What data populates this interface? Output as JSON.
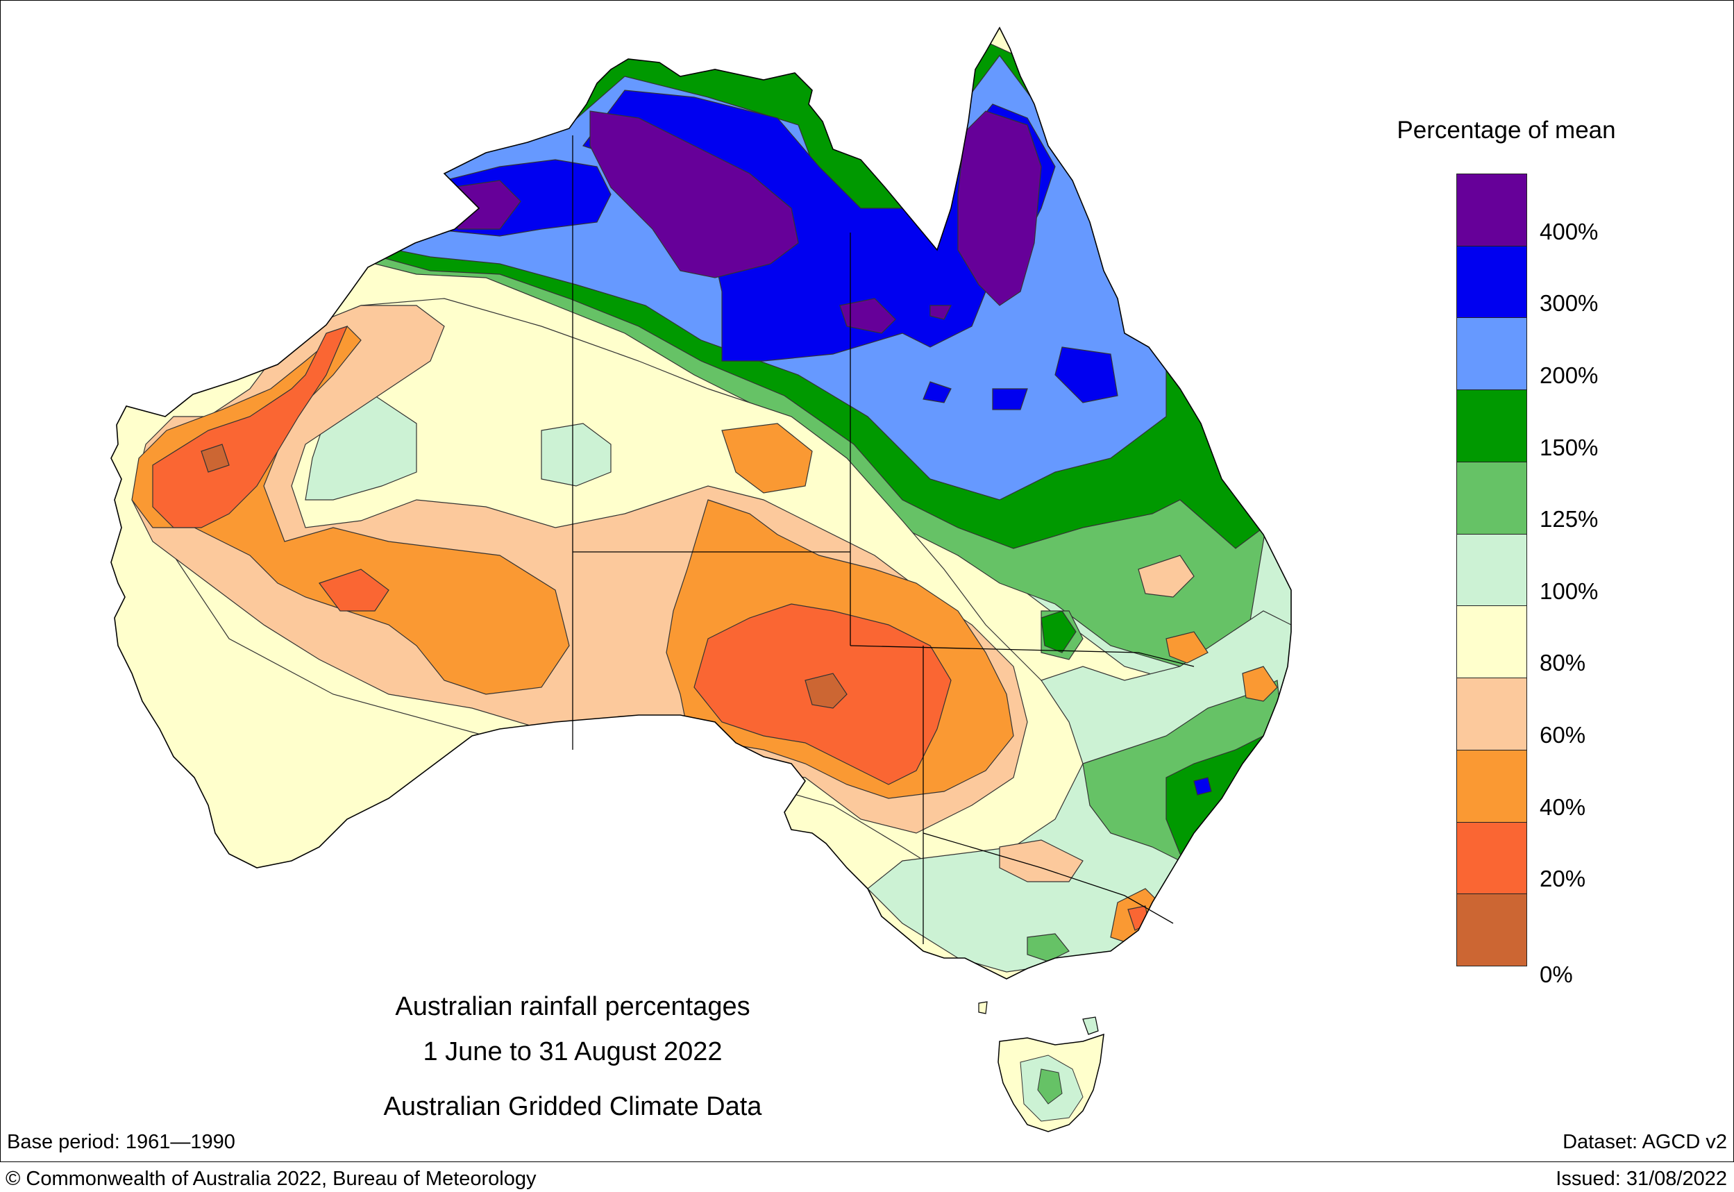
{
  "titles": {
    "line1": "Australian rainfall percentages",
    "line2": "1 June to 31 August 2022",
    "line3": "Australian Gridded Climate Data"
  },
  "legend": {
    "title": "Percentage of mean",
    "classes": [
      {
        "label": "400%",
        "color": "#660099"
      },
      {
        "label": "300%",
        "color": "#0000f0"
      },
      {
        "label": "200%",
        "color": "#6699ff"
      },
      {
        "label": "150%",
        "color": "#009900"
      },
      {
        "label": "125%",
        "color": "#66c266"
      },
      {
        "label": "100%",
        "color": "#ccf2d4"
      },
      {
        "label": "80%",
        "color": "#ffffcc"
      },
      {
        "label": "60%",
        "color": "#fcc99c"
      },
      {
        "label": "40%",
        "color": "#fa9933"
      },
      {
        "label": "20%",
        "color": "#fa6633"
      },
      {
        "label": "0%",
        "color": "#cc6633"
      }
    ]
  },
  "footer": {
    "base_period": "Base period: 1961—1990",
    "dataset": "Dataset: AGCD v2",
    "copyright": "© Commonwealth of Australia 2022, Bureau of Meteorology",
    "issued": "Issued: 31/08/2022"
  },
  "colors": {
    "purple": "#660099",
    "blue": "#0000f0",
    "lightblue": "#6699ff",
    "green": "#009900",
    "midgreen": "#66c266",
    "palegreen": "#ccf2d4",
    "cream": "#ffffcc",
    "peach": "#fcc99c",
    "orange": "#fa9933",
    "redorange": "#fa6633",
    "brown": "#cc6633"
  }
}
